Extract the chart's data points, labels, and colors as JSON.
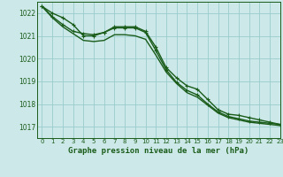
{
  "title": "Graphe pression niveau de la mer (hPa)",
  "background_color": "#cce8e8",
  "grid_color": "#99cccc",
  "line_color": "#1a5c1a",
  "xlim": [
    -0.5,
    23
  ],
  "ylim": [
    1016.5,
    1022.5
  ],
  "yticks": [
    1017,
    1018,
    1019,
    1020,
    1021,
    1022
  ],
  "xticks": [
    0,
    1,
    2,
    3,
    4,
    5,
    6,
    7,
    8,
    9,
    10,
    11,
    12,
    13,
    14,
    15,
    16,
    17,
    18,
    19,
    20,
    21,
    22,
    23
  ],
  "series": [
    {
      "y": [
        1022.3,
        1022.0,
        1021.8,
        1021.5,
        1021.0,
        1021.0,
        1021.15,
        1021.4,
        1021.4,
        1021.4,
        1021.2,
        1020.5,
        1019.6,
        1019.15,
        1018.8,
        1018.65,
        1018.2,
        1017.75,
        1017.55,
        1017.5,
        1017.4,
        1017.3,
        1017.2,
        1017.1
      ],
      "marker": true,
      "lw": 1.0
    },
    {
      "y": [
        1022.3,
        1021.85,
        1021.5,
        1021.2,
        1021.1,
        1021.05,
        1021.15,
        1021.35,
        1021.35,
        1021.35,
        1021.15,
        1020.35,
        1019.5,
        1018.95,
        1018.6,
        1018.4,
        1018.0,
        1017.65,
        1017.45,
        1017.35,
        1017.25,
        1017.2,
        1017.15,
        1017.1
      ],
      "marker": true,
      "lw": 1.0
    },
    {
      "y": [
        1022.3,
        1021.8,
        1021.4,
        1021.1,
        1020.8,
        1020.75,
        1020.8,
        1021.05,
        1021.05,
        1021.0,
        1020.85,
        1020.15,
        1019.4,
        1018.9,
        1018.5,
        1018.3,
        1017.95,
        1017.6,
        1017.4,
        1017.3,
        1017.2,
        1017.15,
        1017.1,
        1017.05
      ],
      "marker": false,
      "lw": 1.0
    }
  ]
}
